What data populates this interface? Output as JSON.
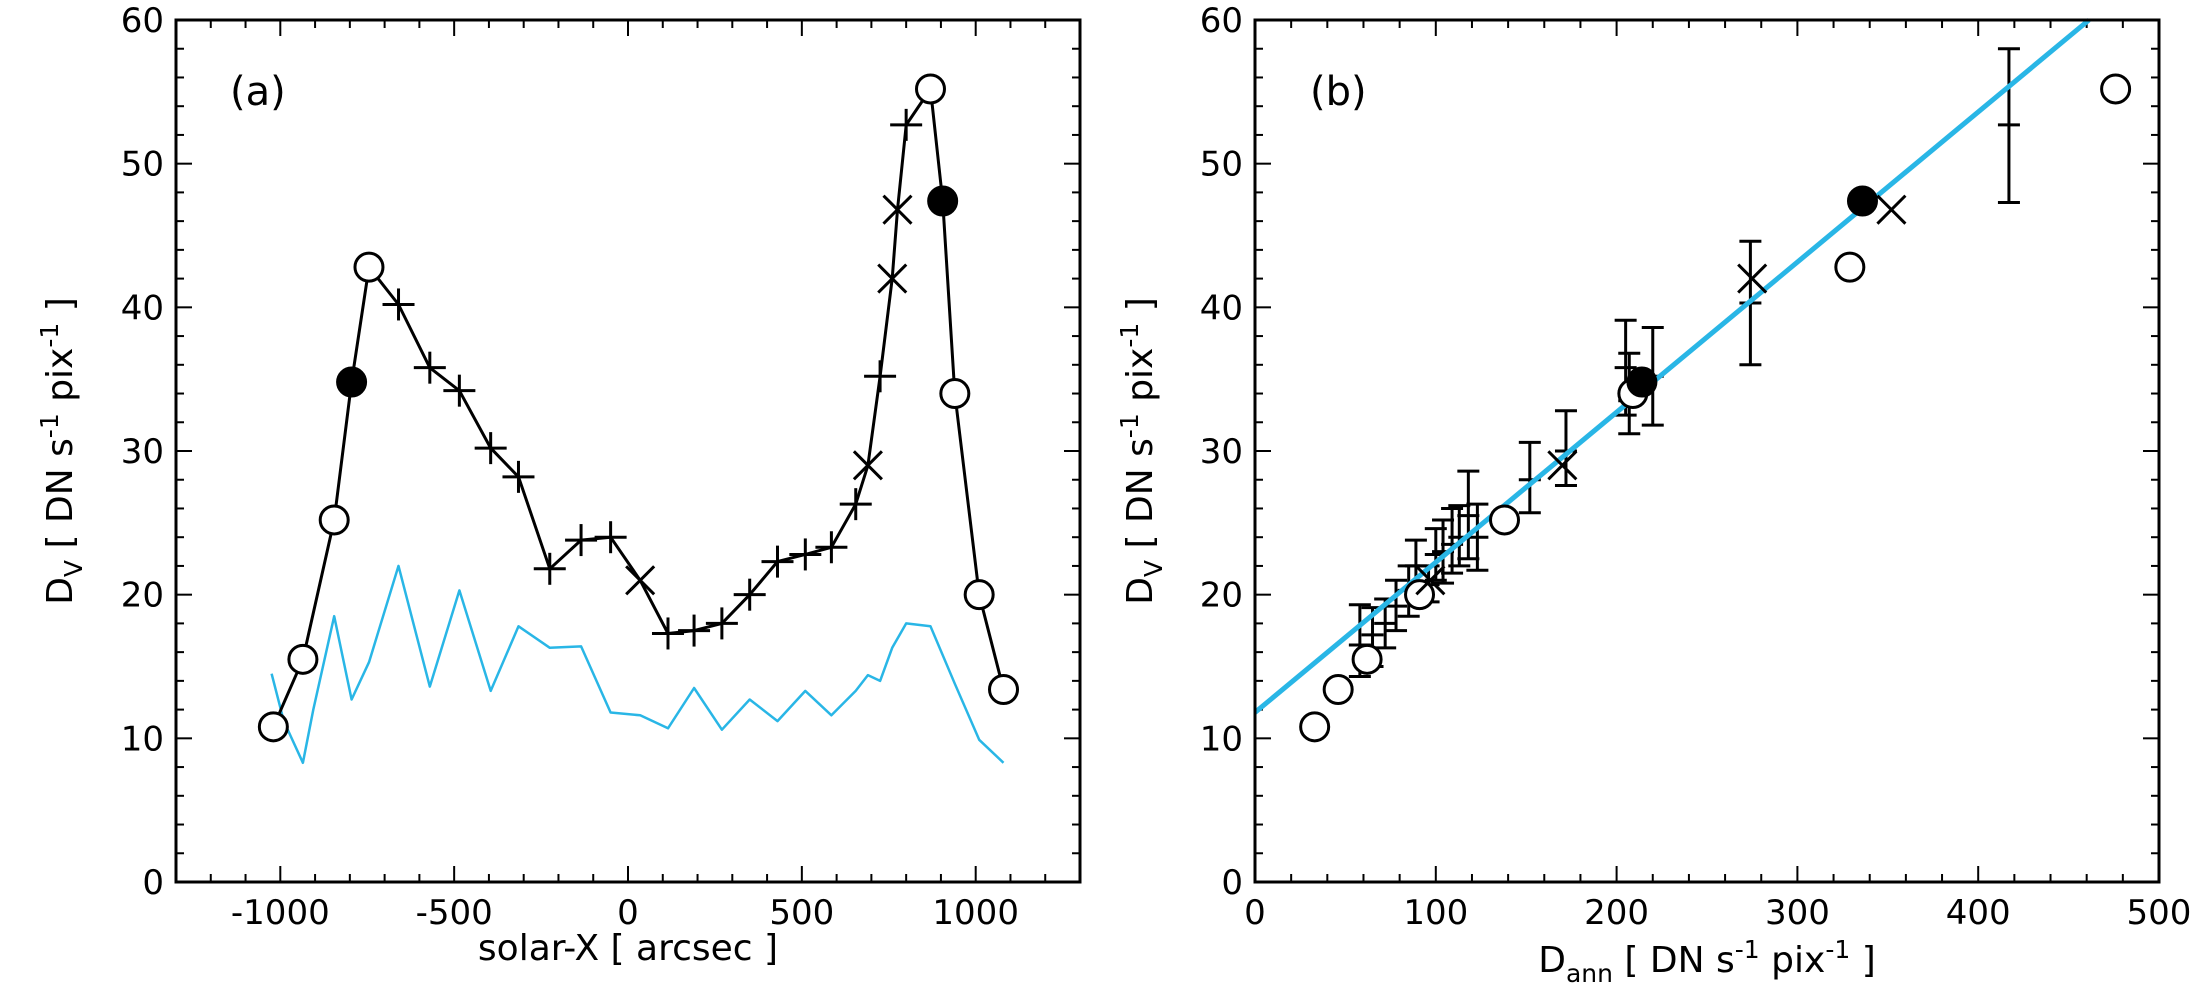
{
  "colors": {
    "ink": "#000000",
    "cyan": "#29b6e6",
    "background": "#ffffff"
  },
  "chart_data": [
    {
      "type": "line",
      "panel_label": "(a)",
      "xlabel": "solar-X [ arcsec ]",
      "ylabel": {
        "base": "D",
        "sub": "V",
        "units_a": " [ DN s",
        "sup1": "-1",
        "units_b": " pix",
        "sup2": "-1",
        "units_c": " ]"
      },
      "xlim": [
        -1300,
        1300
      ],
      "ylim": [
        0,
        60
      ],
      "xticks": [
        -1000,
        -500,
        0,
        500,
        1000
      ],
      "xtick_labels": [
        "-1000",
        "-500",
        "0",
        "500",
        "1000"
      ],
      "yticks": [
        0,
        10,
        20,
        30,
        40,
        50,
        60
      ],
      "ytick_labels": [
        "0",
        "10",
        "20",
        "30",
        "40",
        "50",
        "60"
      ],
      "series": [
        {
          "name": "D_V",
          "color": "#000000",
          "points": [
            {
              "x": -1020,
              "y": 10.8,
              "m": "o"
            },
            {
              "x": -935,
              "y": 15.5,
              "m": "o"
            },
            {
              "x": -845,
              "y": 25.2,
              "m": "o"
            },
            {
              "x": -795,
              "y": 34.8,
              "m": "filled"
            },
            {
              "x": -745,
              "y": 42.8,
              "m": "o"
            },
            {
              "x": -660,
              "y": 40.2,
              "m": "+"
            },
            {
              "x": -570,
              "y": 35.8,
              "m": "+"
            },
            {
              "x": -485,
              "y": 34.2,
              "m": "+"
            },
            {
              "x": -395,
              "y": 30.2,
              "m": "+"
            },
            {
              "x": -315,
              "y": 28.2,
              "m": "+"
            },
            {
              "x": -225,
              "y": 21.8,
              "m": "+"
            },
            {
              "x": -135,
              "y": 23.8,
              "m": "+"
            },
            {
              "x": -50,
              "y": 24.0,
              "m": "+"
            },
            {
              "x": 35,
              "y": 21.0,
              "m": "x"
            },
            {
              "x": 115,
              "y": 17.3,
              "m": "+"
            },
            {
              "x": 190,
              "y": 17.5,
              "m": "+"
            },
            {
              "x": 270,
              "y": 18.0,
              "m": "+"
            },
            {
              "x": 350,
              "y": 20.0,
              "m": "+"
            },
            {
              "x": 430,
              "y": 22.3,
              "m": "+"
            },
            {
              "x": 510,
              "y": 22.8,
              "m": "+"
            },
            {
              "x": 585,
              "y": 23.3,
              "m": "+"
            },
            {
              "x": 655,
              "y": 26.3,
              "m": "+"
            },
            {
              "x": 690,
              "y": 29.0,
              "m": "x"
            },
            {
              "x": 725,
              "y": 35.2,
              "m": "+"
            },
            {
              "x": 760,
              "y": 42.0,
              "m": "x"
            },
            {
              "x": 775,
              "y": 46.8,
              "m": "x"
            },
            {
              "x": 800,
              "y": 52.7,
              "m": "+"
            },
            {
              "x": 870,
              "y": 55.2,
              "m": "o"
            },
            {
              "x": 905,
              "y": 47.4,
              "m": "filled"
            },
            {
              "x": 940,
              "y": 34.0,
              "m": "o"
            },
            {
              "x": 1010,
              "y": 20.0,
              "m": "o"
            },
            {
              "x": 1080,
              "y": 13.4,
              "m": "o"
            }
          ]
        },
        {
          "name": "cyan curve",
          "color": "#29b6e6",
          "points": [
            {
              "x": -1025,
              "y": 14.5
            },
            {
              "x": -990,
              "y": 11.2
            },
            {
              "x": -935,
              "y": 8.3
            },
            {
              "x": -905,
              "y": 12.0
            },
            {
              "x": -845,
              "y": 18.5
            },
            {
              "x": -795,
              "y": 12.7
            },
            {
              "x": -745,
              "y": 15.3
            },
            {
              "x": -660,
              "y": 22.0
            },
            {
              "x": -570,
              "y": 13.6
            },
            {
              "x": -485,
              "y": 20.3
            },
            {
              "x": -395,
              "y": 13.3
            },
            {
              "x": -315,
              "y": 17.8
            },
            {
              "x": -225,
              "y": 16.3
            },
            {
              "x": -135,
              "y": 16.4
            },
            {
              "x": -50,
              "y": 11.8
            },
            {
              "x": 35,
              "y": 11.6
            },
            {
              "x": 115,
              "y": 10.7
            },
            {
              "x": 190,
              "y": 13.5
            },
            {
              "x": 270,
              "y": 10.6
            },
            {
              "x": 350,
              "y": 12.7
            },
            {
              "x": 430,
              "y": 11.2
            },
            {
              "x": 510,
              "y": 13.3
            },
            {
              "x": 585,
              "y": 11.6
            },
            {
              "x": 655,
              "y": 13.3
            },
            {
              "x": 690,
              "y": 14.4
            },
            {
              "x": 725,
              "y": 14.0
            },
            {
              "x": 760,
              "y": 16.3
            },
            {
              "x": 800,
              "y": 18.0
            },
            {
              "x": 870,
              "y": 17.8
            },
            {
              "x": 940,
              "y": 13.8
            },
            {
              "x": 1010,
              "y": 9.9
            },
            {
              "x": 1080,
              "y": 8.3
            }
          ]
        }
      ]
    },
    {
      "type": "scatter",
      "panel_label": "(b)",
      "xlabel": {
        "base": "D",
        "sub": "ann",
        "units_a": " [ DN s",
        "sup1": "-1",
        "units_b": " pix",
        "sup2": "-1",
        "units_c": " ]"
      },
      "ylabel": {
        "base": "D",
        "sub": "V",
        "units_a": " [ DN s",
        "sup1": "-1",
        "units_b": " pix",
        "sup2": "-1",
        "units_c": " ]"
      },
      "xlim": [
        0,
        500
      ],
      "ylim": [
        0,
        60
      ],
      "xticks": [
        0,
        100,
        200,
        300,
        400,
        500
      ],
      "xtick_labels": [
        "0",
        "100",
        "200",
        "300",
        "400",
        "500"
      ],
      "yticks": [
        0,
        10,
        20,
        30,
        40,
        50,
        60
      ],
      "ytick_labels": [
        "0",
        "10",
        "20",
        "30",
        "40",
        "50",
        "60"
      ],
      "fit_line": {
        "color": "#29b6e6",
        "intercept": 11.8,
        "slope": 0.1045
      },
      "points": [
        {
          "x": 33,
          "y": 10.8,
          "m": "o"
        },
        {
          "x": 46,
          "y": 13.4,
          "m": "o"
        },
        {
          "x": 62,
          "y": 15.5,
          "m": "o"
        },
        {
          "x": 91,
          "y": 20.0,
          "m": "o"
        },
        {
          "x": 138,
          "y": 25.2,
          "m": "o"
        },
        {
          "x": 209,
          "y": 34.0,
          "m": "o"
        },
        {
          "x": 329,
          "y": 42.8,
          "m": "o"
        },
        {
          "x": 476,
          "y": 55.2,
          "m": "o"
        },
        {
          "x": 214,
          "y": 34.8,
          "m": "filled"
        },
        {
          "x": 336,
          "y": 47.4,
          "m": "filled"
        },
        {
          "x": 352,
          "y": 46.8,
          "m": "x"
        },
        {
          "x": 275,
          "y": 42.0,
          "m": "x"
        },
        {
          "x": 170,
          "y": 29.0,
          "m": "x"
        },
        {
          "x": 97,
          "y": 21.0,
          "m": "x"
        }
      ],
      "error_bars": [
        {
          "x": 58,
          "y": 16.5,
          "lo": 14.3,
          "hi": 19.3
        },
        {
          "x": 65,
          "y": 17.2,
          "lo": 15.0,
          "hi": 19.1
        },
        {
          "x": 72,
          "y": 18.0,
          "lo": 16.3,
          "hi": 19.7
        },
        {
          "x": 78,
          "y": 19.2,
          "lo": 17.5,
          "hi": 21.0
        },
        {
          "x": 85,
          "y": 20.3,
          "lo": 18.5,
          "hi": 22.0
        },
        {
          "x": 89,
          "y": 22.0,
          "lo": 20.3,
          "hi": 23.8
        },
        {
          "x": 96,
          "y": 20.7,
          "lo": 19.5,
          "hi": 22.0
        },
        {
          "x": 100,
          "y": 22.8,
          "lo": 21.0,
          "hi": 24.6
        },
        {
          "x": 104,
          "y": 23.0,
          "lo": 20.8,
          "hi": 25.2
        },
        {
          "x": 109,
          "y": 23.5,
          "lo": 21.5,
          "hi": 26.0
        },
        {
          "x": 113,
          "y": 24.0,
          "lo": 22.0,
          "hi": 26.2
        },
        {
          "x": 118,
          "y": 25.5,
          "lo": 22.5,
          "hi": 28.6
        },
        {
          "x": 123,
          "y": 24.0,
          "lo": 21.7,
          "hi": 26.3
        },
        {
          "x": 152,
          "y": 28.0,
          "lo": 25.7,
          "hi": 30.6
        },
        {
          "x": 172,
          "y": 30.0,
          "lo": 27.6,
          "hi": 32.8
        },
        {
          "x": 205,
          "y": 35.8,
          "lo": 32.5,
          "hi": 39.1
        },
        {
          "x": 207,
          "y": 33.5,
          "lo": 31.2,
          "hi": 36.8
        },
        {
          "x": 220,
          "y": 35.2,
          "lo": 31.8,
          "hi": 38.6
        },
        {
          "x": 274,
          "y": 40.3,
          "lo": 36.0,
          "hi": 44.6
        },
        {
          "x": 417,
          "y": 52.7,
          "lo": 47.3,
          "hi": 58.0
        }
      ]
    }
  ]
}
